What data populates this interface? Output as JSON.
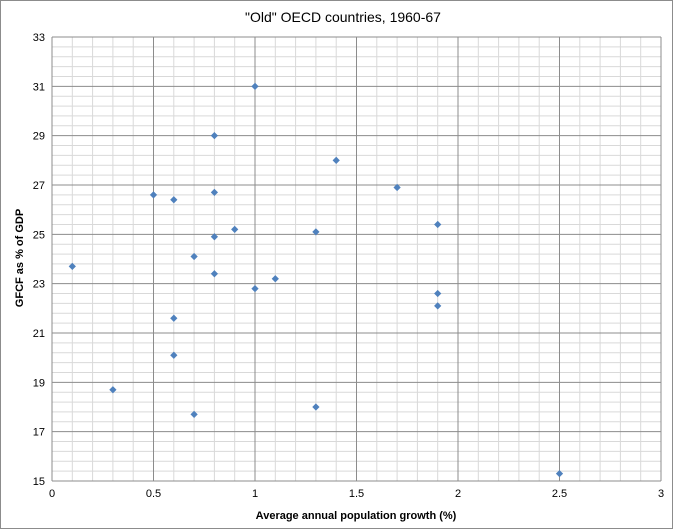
{
  "chart_data": {
    "type": "scatter",
    "title": "\"Old\" OECD countries, 1960-67",
    "xlabel": "Average annual population growth (%)",
    "ylabel": "GFCF as % of GDP",
    "xlim": [
      0,
      3
    ],
    "ylim": [
      15,
      33
    ],
    "x_major_ticks": [
      0,
      0.5,
      1,
      1.5,
      2,
      2.5,
      3
    ],
    "x_tick_labels": [
      "0",
      "0.5",
      "1",
      "1.5",
      "2",
      "2.5",
      "3"
    ],
    "y_major_ticks": [
      15,
      17,
      19,
      21,
      23,
      25,
      27,
      29,
      31,
      33
    ],
    "y_tick_labels": [
      "15",
      "17",
      "19",
      "21",
      "23",
      "25",
      "27",
      "29",
      "31",
      "33"
    ],
    "x_minor_step": 0.1,
    "y_minor_step": 0.4,
    "grid": true,
    "marker": "diamond",
    "colors": {
      "marker": "#4f81bd",
      "major_grid": "#8c8c8c",
      "minor_grid": "#d9d9d9"
    },
    "points": [
      {
        "x": 0.1,
        "y": 23.7
      },
      {
        "x": 0.3,
        "y": 18.7
      },
      {
        "x": 0.5,
        "y": 26.6
      },
      {
        "x": 0.6,
        "y": 26.4
      },
      {
        "x": 0.6,
        "y": 21.6
      },
      {
        "x": 0.6,
        "y": 20.1
      },
      {
        "x": 0.7,
        "y": 24.1
      },
      {
        "x": 0.7,
        "y": 17.7
      },
      {
        "x": 0.8,
        "y": 29.0
      },
      {
        "x": 0.8,
        "y": 26.7
      },
      {
        "x": 0.8,
        "y": 24.9
      },
      {
        "x": 0.8,
        "y": 23.4
      },
      {
        "x": 0.9,
        "y": 25.2
      },
      {
        "x": 1.0,
        "y": 31.0
      },
      {
        "x": 1.0,
        "y": 22.8
      },
      {
        "x": 1.1,
        "y": 23.2
      },
      {
        "x": 1.3,
        "y": 25.1
      },
      {
        "x": 1.3,
        "y": 18.0
      },
      {
        "x": 1.4,
        "y": 28.0
      },
      {
        "x": 1.7,
        "y": 26.9
      },
      {
        "x": 1.9,
        "y": 25.4
      },
      {
        "x": 1.9,
        "y": 22.6
      },
      {
        "x": 1.9,
        "y": 22.1
      },
      {
        "x": 2.5,
        "y": 15.3
      }
    ]
  }
}
